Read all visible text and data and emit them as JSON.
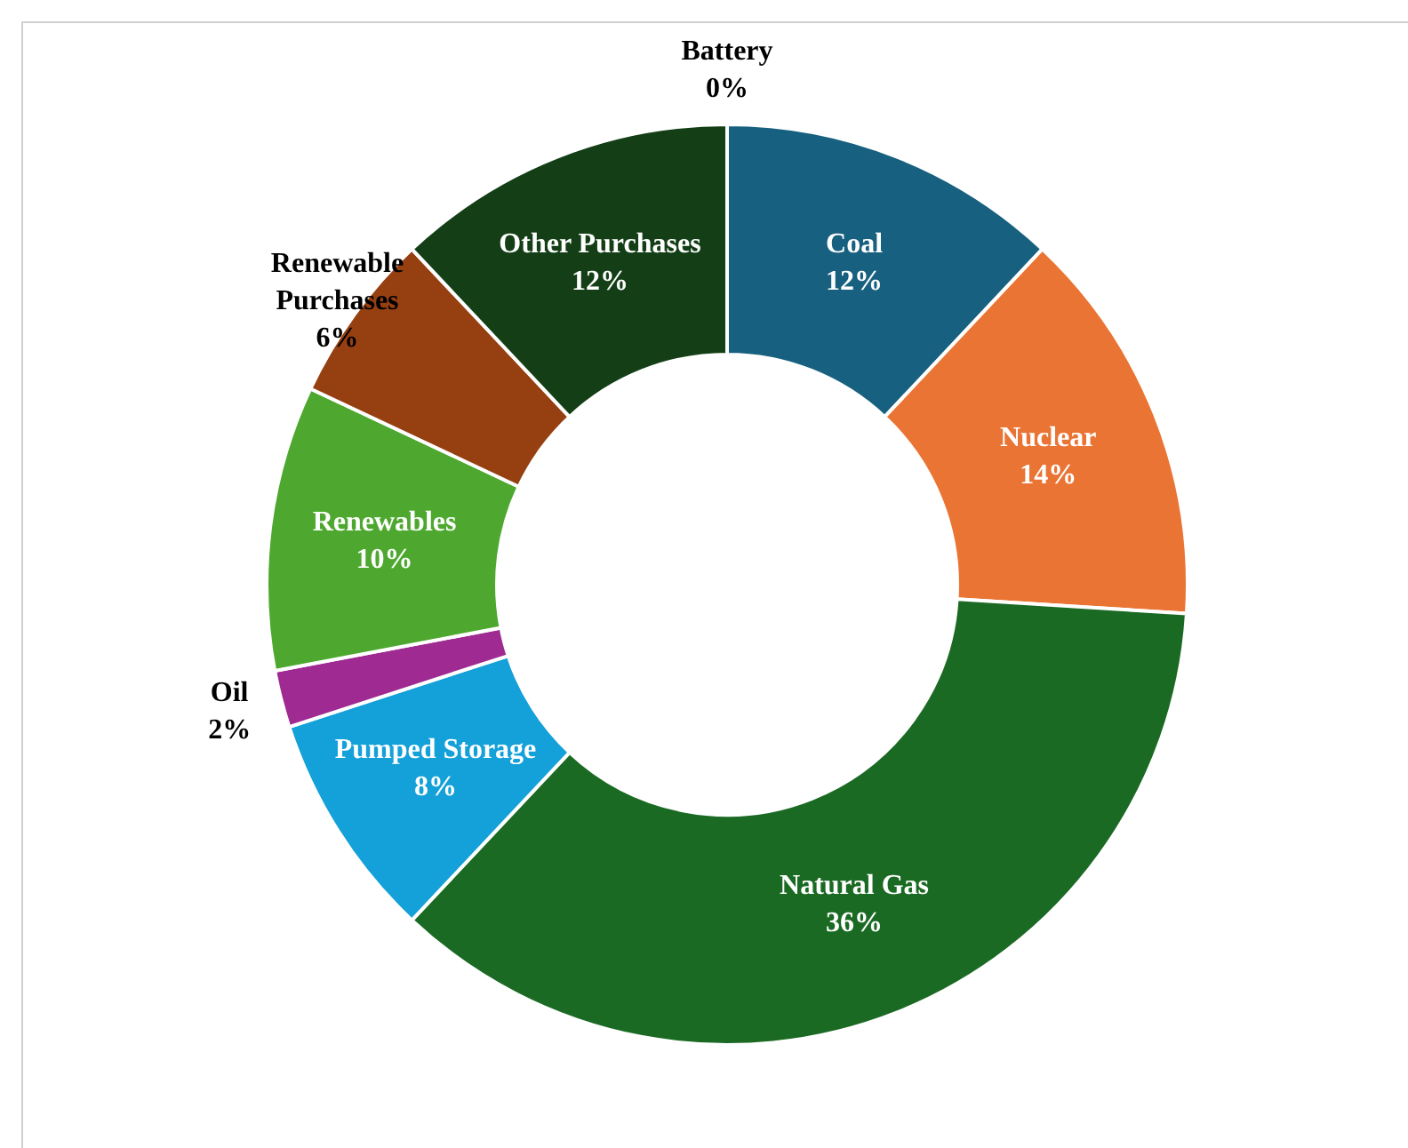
{
  "chart_data": {
    "type": "donut",
    "categories": [
      "Coal",
      "Nuclear",
      "Natural Gas",
      "Pumped Storage",
      "Oil",
      "Renewables",
      "Renewable Purchases",
      "Other Purchases",
      "Battery"
    ],
    "values": [
      12,
      14,
      36,
      8,
      2,
      10,
      6,
      12,
      0
    ],
    "colors": [
      "#17607f",
      "#ea7433",
      "#1b6a24",
      "#14a0d8",
      "#9e2a92",
      "#4ea82f",
      "#964012",
      "#143f16",
      "#7f7f7f"
    ],
    "value_labels": [
      "12%",
      "14%",
      "36%",
      "8%",
      "2%",
      "10%",
      "6%",
      "12%",
      "0%"
    ],
    "legend": false
  }
}
